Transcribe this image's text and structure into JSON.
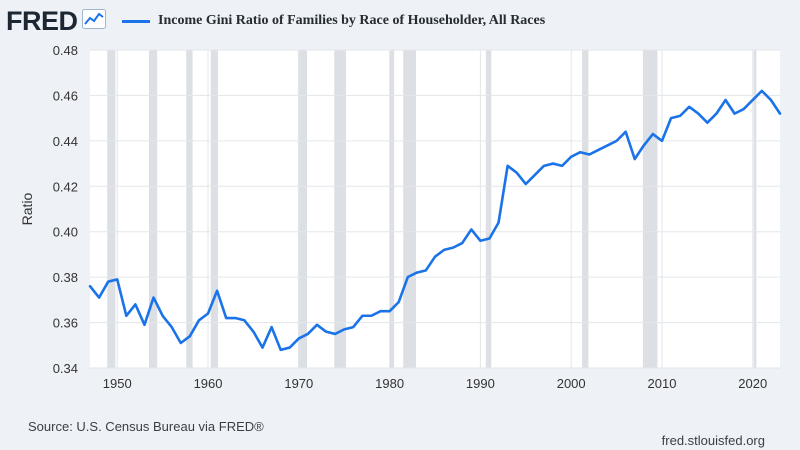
{
  "header": {
    "logo_text": "FRED",
    "logo_icon": "line-chart-icon"
  },
  "chart_data": {
    "type": "line",
    "title": "Income Gini Ratio of Families by Race of Householder, All Races",
    "ylabel": "Ratio",
    "xlabel": "",
    "xlim": [
      1947,
      2023
    ],
    "ylim": [
      0.34,
      0.48
    ],
    "x_ticks": [
      "1950",
      "1960",
      "1970",
      "1980",
      "1990",
      "2000",
      "2010",
      "2020"
    ],
    "y_ticks": [
      "0.34",
      "0.36",
      "0.38",
      "0.40",
      "0.42",
      "0.44",
      "0.46",
      "0.48"
    ],
    "grid": true,
    "legend": "top",
    "recessions": [
      [
        1948.9,
        1949.8
      ],
      [
        1953.5,
        1954.4
      ],
      [
        1957.6,
        1958.3
      ],
      [
        1960.3,
        1961.1
      ],
      [
        1969.9,
        1970.9
      ],
      [
        1973.9,
        1975.2
      ],
      [
        1980.0,
        1980.5
      ],
      [
        1981.5,
        1982.9
      ],
      [
        1990.6,
        1991.2
      ],
      [
        2001.2,
        2001.9
      ],
      [
        2007.9,
        2009.5
      ],
      [
        2020.1,
        2020.4
      ]
    ],
    "series": [
      {
        "name": "Income Gini Ratio of Families by Race of Householder, All Races",
        "color": "#1a73e8",
        "x": [
          1947,
          1948,
          1949,
          1950,
          1951,
          1952,
          1953,
          1954,
          1955,
          1956,
          1957,
          1958,
          1959,
          1960,
          1961,
          1962,
          1963,
          1964,
          1965,
          1966,
          1967,
          1968,
          1969,
          1970,
          1971,
          1972,
          1973,
          1974,
          1975,
          1976,
          1977,
          1978,
          1979,
          1980,
          1981,
          1982,
          1983,
          1984,
          1985,
          1986,
          1987,
          1988,
          1989,
          1990,
          1991,
          1992,
          1993,
          1994,
          1995,
          1996,
          1997,
          1998,
          1999,
          2000,
          2001,
          2002,
          2003,
          2004,
          2005,
          2006,
          2007,
          2008,
          2009,
          2010,
          2011,
          2012,
          2013,
          2014,
          2015,
          2016,
          2017,
          2018,
          2019,
          2020,
          2021,
          2022,
          2023
        ],
        "values": [
          0.376,
          0.371,
          0.378,
          0.379,
          0.363,
          0.368,
          0.359,
          0.371,
          0.363,
          0.358,
          0.351,
          0.354,
          0.361,
          0.364,
          0.374,
          0.362,
          0.362,
          0.361,
          0.356,
          0.349,
          0.358,
          0.348,
          0.349,
          0.353,
          0.355,
          0.359,
          0.356,
          0.355,
          0.357,
          0.358,
          0.363,
          0.363,
          0.365,
          0.365,
          0.369,
          0.38,
          0.382,
          0.383,
          0.389,
          0.392,
          0.393,
          0.395,
          0.401,
          0.396,
          0.397,
          0.404,
          0.429,
          0.426,
          0.421,
          0.425,
          0.429,
          0.43,
          0.429,
          0.433,
          0.435,
          0.434,
          0.436,
          0.438,
          0.44,
          0.444,
          0.432,
          0.438,
          0.443,
          0.44,
          0.45,
          0.451,
          0.455,
          0.452,
          0.448,
          0.452,
          0.458,
          0.452,
          0.454,
          0.458,
          0.462,
          0.458,
          0.452
        ]
      }
    ]
  },
  "footer": {
    "source": "Source: U.S. Census Bureau via FRED®",
    "site": "fred.stlouisfed.org"
  }
}
